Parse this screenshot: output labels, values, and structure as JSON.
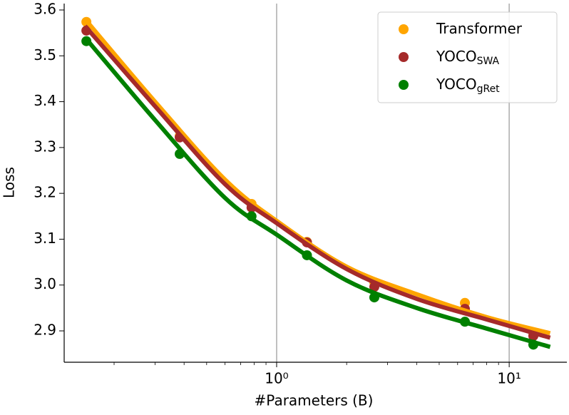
{
  "chart_data": {
    "type": "scatter",
    "x_label": "#Parameters (B)",
    "y_label": "Loss",
    "x_log": true,
    "xlim": [
      0.122,
      17.7
    ],
    "ylim": [
      2.8316,
      3.614
    ],
    "xticks": [
      {
        "value": 1,
        "label": "10⁰"
      },
      {
        "value": 10,
        "label": "10¹"
      }
    ],
    "yticks": [
      2.9,
      {
        "value": 3,
        "label": "3.0"
      },
      3.1,
      3.2,
      3.3,
      3.4,
      3.5,
      3.6
    ],
    "grid": "x",
    "legend": "upper right",
    "x": [
      0.152,
      0.383,
      0.78,
      1.35,
      2.63,
      6.45,
      12.7
    ],
    "fit_x": [
      0.15,
      0.3,
      0.6,
      1,
      2,
      4,
      8,
      15
    ],
    "series": [
      {
        "name": "Transformer",
        "color": "#ffa500",
        "values": [
          3.574,
          3.325,
          3.177,
          3.094,
          3.006,
          2.961,
          2.89
        ],
        "fit": [
          3.58,
          3.4,
          3.23,
          3.14,
          3.04,
          2.98,
          2.93,
          2.895
        ]
      },
      {
        "name": "YOCO",
        "subscript": "SWA",
        "color": "#a52a2a",
        "values": [
          3.555,
          3.322,
          3.169,
          3.093,
          2.996,
          2.948,
          2.889
        ],
        "fit": [
          3.565,
          3.39,
          3.22,
          3.135,
          3.035,
          2.97,
          2.925,
          2.885
        ]
      },
      {
        "name": "YOCO",
        "subscript": "gRet",
        "color": "#008000",
        "values": [
          3.532,
          3.286,
          3.15,
          3.065,
          2.973,
          2.92,
          2.87
        ],
        "fit": [
          3.54,
          3.36,
          3.19,
          3.11,
          3.01,
          2.95,
          2.905,
          2.865
        ]
      }
    ]
  }
}
